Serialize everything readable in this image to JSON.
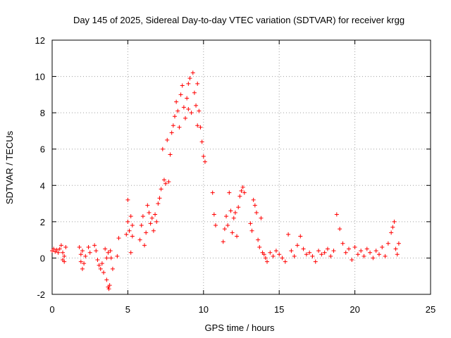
{
  "chart_data": {
    "type": "scatter",
    "title": "Day 145 of 2025, Sidereal Day-to-day VTEC variation (SDTVAR) for receiver krgg",
    "xlabel": "GPS time / hours",
    "ylabel": "SDTVAR / TECUs",
    "xlim": [
      0,
      25
    ],
    "ylim": [
      -2,
      12
    ],
    "xticks": [
      0,
      5,
      10,
      15,
      20,
      25
    ],
    "yticks": [
      -2,
      0,
      2,
      4,
      6,
      8,
      10,
      12
    ],
    "grid": true,
    "marker": "+",
    "color": "#ff0000",
    "series": [
      {
        "name": "SDTVAR",
        "points": [
          [
            0.0,
            0.4
          ],
          [
            0.1,
            0.5
          ],
          [
            0.2,
            0.35
          ],
          [
            0.3,
            0.45
          ],
          [
            0.4,
            0.3
          ],
          [
            0.5,
            0.5
          ],
          [
            0.6,
            0.7
          ],
          [
            0.7,
            0.3
          ],
          [
            0.8,
            0.1
          ],
          [
            0.9,
            0.6
          ],
          [
            0.7,
            -0.1
          ],
          [
            0.8,
            -0.2
          ],
          [
            1.8,
            0.6
          ],
          [
            1.9,
            0.2
          ],
          [
            2.0,
            0.4
          ],
          [
            1.9,
            -0.2
          ],
          [
            2.0,
            -0.6
          ],
          [
            2.1,
            -0.3
          ],
          [
            2.2,
            0.1
          ],
          [
            2.4,
            0.6
          ],
          [
            2.5,
            0.3
          ],
          [
            2.8,
            0.7
          ],
          [
            2.9,
            0.4
          ],
          [
            3.0,
            -0.1
          ],
          [
            3.1,
            -0.4
          ],
          [
            3.2,
            -0.6
          ],
          [
            3.3,
            -0.3
          ],
          [
            3.4,
            -0.8
          ],
          [
            3.5,
            0.5
          ],
          [
            3.6,
            -1.2
          ],
          [
            3.7,
            -1.6
          ],
          [
            3.75,
            -1.7
          ],
          [
            3.8,
            -1.5
          ],
          [
            3.85,
            0.4
          ],
          [
            3.9,
            0.0
          ],
          [
            4.0,
            -0.6
          ],
          [
            3.7,
            0.3
          ],
          [
            3.6,
            0.0
          ],
          [
            4.3,
            0.1
          ],
          [
            4.4,
            1.1
          ],
          [
            4.9,
            1.3
          ],
          [
            5.0,
            2.0
          ],
          [
            5.0,
            3.2
          ],
          [
            5.1,
            1.5
          ],
          [
            5.2,
            2.3
          ],
          [
            5.3,
            1.8
          ],
          [
            5.2,
            0.3
          ],
          [
            5.3,
            1.2
          ],
          [
            5.8,
            1.0
          ],
          [
            5.9,
            1.8
          ],
          [
            6.0,
            2.3
          ],
          [
            6.1,
            0.7
          ],
          [
            6.2,
            1.4
          ],
          [
            6.3,
            2.9
          ],
          [
            6.4,
            2.5
          ],
          [
            6.5,
            1.9
          ],
          [
            6.6,
            2.2
          ],
          [
            6.7,
            1.5
          ],
          [
            6.8,
            2.4
          ],
          [
            6.9,
            2.0
          ],
          [
            7.0,
            3.0
          ],
          [
            7.1,
            3.3
          ],
          [
            7.2,
            3.8
          ],
          [
            7.3,
            6.0
          ],
          [
            7.4,
            4.3
          ],
          [
            7.5,
            4.1
          ],
          [
            7.6,
            6.5
          ],
          [
            7.7,
            4.2
          ],
          [
            7.8,
            5.7
          ],
          [
            7.9,
            6.9
          ],
          [
            8.0,
            7.3
          ],
          [
            8.1,
            7.8
          ],
          [
            8.2,
            8.6
          ],
          [
            8.3,
            8.1
          ],
          [
            8.4,
            7.2
          ],
          [
            8.5,
            9.0
          ],
          [
            8.6,
            9.5
          ],
          [
            8.7,
            8.3
          ],
          [
            8.8,
            7.7
          ],
          [
            8.9,
            8.8
          ],
          [
            9.0,
            9.6
          ],
          [
            9.1,
            9.9
          ],
          [
            9.2,
            8.0
          ],
          [
            9.3,
            10.2
          ],
          [
            9.4,
            9.1
          ],
          [
            9.5,
            8.4
          ],
          [
            9.6,
            9.6
          ],
          [
            9.7,
            8.1
          ],
          [
            9.8,
            7.2
          ],
          [
            9.9,
            6.4
          ],
          [
            10.0,
            5.6
          ],
          [
            10.1,
            5.3
          ],
          [
            9.6,
            7.3
          ],
          [
            9.0,
            8.2
          ],
          [
            10.6,
            3.6
          ],
          [
            10.7,
            2.4
          ],
          [
            10.8,
            1.8
          ],
          [
            11.3,
            0.9
          ],
          [
            11.4,
            1.6
          ],
          [
            11.5,
            2.3
          ],
          [
            11.6,
            1.8
          ],
          [
            11.7,
            3.6
          ],
          [
            11.8,
            2.6
          ],
          [
            11.9,
            1.4
          ],
          [
            12.0,
            2.2
          ],
          [
            12.1,
            2.5
          ],
          [
            12.2,
            1.2
          ],
          [
            12.3,
            2.8
          ],
          [
            12.4,
            3.4
          ],
          [
            12.5,
            3.7
          ],
          [
            12.6,
            3.9
          ],
          [
            12.7,
            3.6
          ],
          [
            13.1,
            1.9
          ],
          [
            13.2,
            1.5
          ],
          [
            13.3,
            3.2
          ],
          [
            13.4,
            2.9
          ],
          [
            13.5,
            2.5
          ],
          [
            13.6,
            1.0
          ],
          [
            13.7,
            0.6
          ],
          [
            13.8,
            2.2
          ],
          [
            13.9,
            0.3
          ],
          [
            14.0,
            0.2
          ],
          [
            14.1,
            0.0
          ],
          [
            14.2,
            -0.2
          ],
          [
            14.4,
            0.3
          ],
          [
            14.6,
            0.1
          ],
          [
            14.8,
            0.4
          ],
          [
            15.0,
            0.2
          ],
          [
            15.2,
            0.0
          ],
          [
            15.4,
            -0.2
          ],
          [
            15.6,
            1.3
          ],
          [
            15.8,
            0.4
          ],
          [
            16.0,
            0.1
          ],
          [
            16.2,
            0.7
          ],
          [
            16.4,
            1.2
          ],
          [
            16.6,
            0.5
          ],
          [
            16.8,
            0.2
          ],
          [
            17.0,
            0.3
          ],
          [
            17.2,
            0.1
          ],
          [
            17.4,
            -0.2
          ],
          [
            17.6,
            0.4
          ],
          [
            17.8,
            0.2
          ],
          [
            18.0,
            0.3
          ],
          [
            18.2,
            0.5
          ],
          [
            18.4,
            0.1
          ],
          [
            18.6,
            0.4
          ],
          [
            18.8,
            2.4
          ],
          [
            19.0,
            1.6
          ],
          [
            19.2,
            0.8
          ],
          [
            19.4,
            0.3
          ],
          [
            19.6,
            0.5
          ],
          [
            19.8,
            -0.1
          ],
          [
            20.0,
            0.6
          ],
          [
            20.2,
            0.2
          ],
          [
            20.4,
            0.4
          ],
          [
            20.6,
            0.1
          ],
          [
            20.8,
            0.5
          ],
          [
            21.0,
            0.3
          ],
          [
            21.2,
            0.0
          ],
          [
            21.4,
            0.4
          ],
          [
            21.6,
            0.2
          ],
          [
            21.8,
            0.6
          ],
          [
            22.0,
            0.1
          ],
          [
            22.2,
            0.8
          ],
          [
            22.4,
            1.4
          ],
          [
            22.5,
            1.7
          ],
          [
            22.6,
            2.0
          ],
          [
            22.7,
            0.5
          ],
          [
            22.8,
            0.2
          ],
          [
            22.9,
            0.8
          ]
        ]
      }
    ]
  }
}
